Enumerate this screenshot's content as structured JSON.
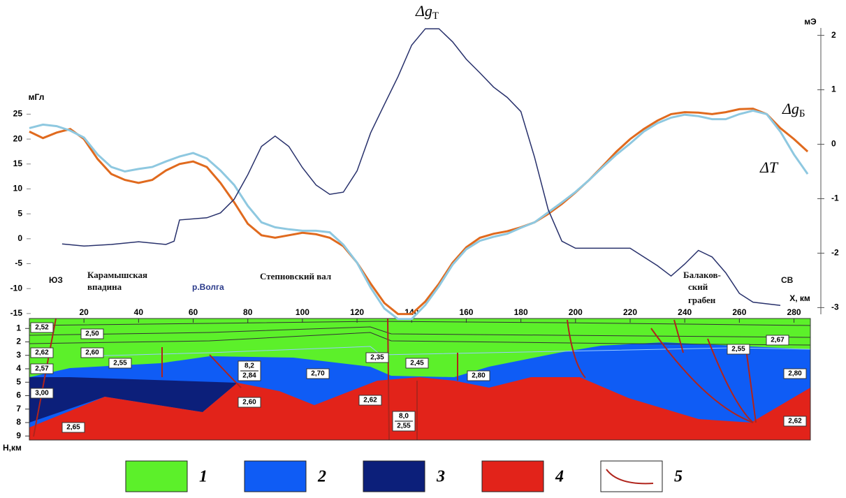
{
  "chart_data": [
    {
      "type": "line",
      "xlim": [
        0,
        286
      ],
      "xticks": [
        20,
        40,
        60,
        80,
        100,
        120,
        140,
        160,
        180,
        200,
        220,
        240,
        260,
        280
      ],
      "ylim": [
        -16,
        43
      ],
      "yticks": [
        -15,
        -10,
        -5,
        0,
        5,
        10,
        15,
        20,
        25
      ],
      "y_label": "мГл",
      "y2lim": [
        -3.2,
        2.2
      ],
      "y2ticks": [
        -3,
        -2,
        -1,
        0,
        1,
        2
      ],
      "y2_label": "мЭ",
      "x_label": "Х, км",
      "series": [
        {
          "name": "Δg",
          "name_sub": "Т",
          "color": "#e06a1e",
          "x": [
            0,
            5,
            10,
            15,
            20,
            25,
            30,
            35,
            40,
            45,
            50,
            55,
            60,
            65,
            70,
            75,
            80,
            85,
            90,
            95,
            100,
            105,
            110,
            115,
            120,
            125,
            130,
            135,
            140,
            145,
            150,
            155,
            160,
            165,
            170,
            175,
            180,
            185,
            190,
            195,
            200,
            205,
            210,
            215,
            220,
            225,
            230,
            235,
            240,
            245,
            250,
            255,
            260,
            265,
            270,
            275,
            280,
            285
          ],
          "values": [
            21.5,
            20.2,
            21.3,
            22,
            20,
            16,
            13,
            11.8,
            11.2,
            11.8,
            13.7,
            15,
            15.5,
            14.4,
            11.2,
            7.3,
            3,
            0.7,
            0.2,
            0.7,
            1.2,
            0.9,
            0.2,
            -1.5,
            -4.8,
            -9,
            -12.9,
            -15.1,
            -15.1,
            -12.6,
            -9,
            -4.8,
            -1.7,
            0.2,
            1,
            1.5,
            2.3,
            3.3,
            5,
            7,
            9.3,
            11.8,
            14.6,
            17.5,
            20,
            22,
            23.7,
            25,
            25.4,
            25.3,
            25,
            25.4,
            26,
            26.1,
            25,
            22.2,
            20,
            17.5
          ]
        },
        {
          "name": "Δg",
          "name_sub": "Б",
          "color": "#8ec8e0",
          "x": [
            0,
            5,
            10,
            15,
            20,
            25,
            30,
            35,
            40,
            45,
            50,
            55,
            60,
            65,
            70,
            75,
            80,
            85,
            90,
            95,
            100,
            105,
            110,
            115,
            120,
            125,
            130,
            135,
            140,
            145,
            150,
            155,
            160,
            165,
            170,
            175,
            180,
            185,
            190,
            195,
            200,
            205,
            210,
            215,
            220,
            225,
            230,
            235,
            240,
            245,
            250,
            255,
            260,
            265,
            270,
            275,
            280,
            285
          ],
          "values": [
            22.2,
            22.9,
            22.6,
            21.7,
            20.3,
            16.9,
            14.4,
            13.5,
            14,
            14.4,
            15.5,
            16.5,
            17.2,
            16.1,
            13.7,
            10.8,
            6.6,
            3.3,
            2.3,
            1.9,
            1.6,
            1.6,
            1.3,
            -1.2,
            -4.8,
            -9.8,
            -14,
            -16.1,
            -16.1,
            -13.3,
            -9.5,
            -5.2,
            -2.1,
            -0.4,
            0.4,
            1,
            2.2,
            3.3,
            5.3,
            7.3,
            9.4,
            11.8,
            14.4,
            16.9,
            19.1,
            21.5,
            23.2,
            24.3,
            24.9,
            24.6,
            24,
            24,
            25,
            25.7,
            25,
            21.5,
            16.9,
            13
          ]
        },
        {
          "name": "ΔT",
          "color": "#27306b",
          "axis": "y2",
          "x": [
            12,
            20,
            30,
            40,
            50,
            53,
            55,
            65,
            70,
            75,
            80,
            85,
            90,
            95,
            100,
            105,
            110,
            115,
            120,
            125,
            130,
            135,
            140,
            145,
            150,
            155,
            160,
            165,
            170,
            175,
            180,
            185,
            190,
            195,
            200,
            210,
            220,
            230,
            235,
            240,
            245,
            250,
            255,
            260,
            265,
            275
          ],
          "values": [
            -1.83,
            -1.87,
            -1.84,
            -1.79,
            -1.84,
            -1.78,
            -1.39,
            -1.35,
            -1.26,
            -1.01,
            -0.56,
            -0.04,
            0.15,
            -0.04,
            -0.43,
            -0.75,
            -0.92,
            -0.88,
            -0.49,
            0.21,
            0.73,
            1.24,
            1.82,
            2.12,
            2.12,
            1.88,
            1.56,
            1.31,
            1.05,
            0.86,
            0.6,
            -0.24,
            -1.2,
            -1.78,
            -1.91,
            -1.91,
            -1.91,
            -2.23,
            -2.42,
            -2.2,
            -1.95,
            -2.07,
            -2.36,
            -2.74,
            -2.9,
            -2.96
          ]
        }
      ],
      "annotations": [
        "ЮЗ",
        "Карамышская",
        "впадина",
        "р.Волга",
        "Степновский вал",
        "Балаков-",
        "ский",
        "грабен",
        "СВ"
      ]
    },
    {
      "type": "section",
      "ylim": [
        0,
        9.3
      ],
      "yticks": [
        1,
        2,
        3,
        4,
        5,
        6,
        7,
        8,
        9
      ],
      "y_label": "Н,км",
      "density_labels": [
        "2,52",
        "2,50",
        "2,62",
        "2,60",
        "2,55",
        "2,57",
        "3,00",
        "2,65",
        {
          "num": "8,2",
          "den": "2,84"
        },
        "2,60",
        "2,70",
        "2,35",
        "2,45",
        "2,62",
        {
          "num": "8,0",
          "den": "2,55"
        },
        "2,80",
        "2,55",
        "2,67",
        "2,80",
        "2,62"
      ],
      "legend": [
        {
          "label": "1",
          "color": "#5cf02a"
        },
        {
          "label": "2",
          "color": "#0f5cf5"
        },
        {
          "label": "3",
          "color": "#0c1f7a"
        },
        {
          "label": "4",
          "color": "#e2231a"
        },
        {
          "label": "5",
          "color": "#b0241c"
        }
      ]
    }
  ]
}
